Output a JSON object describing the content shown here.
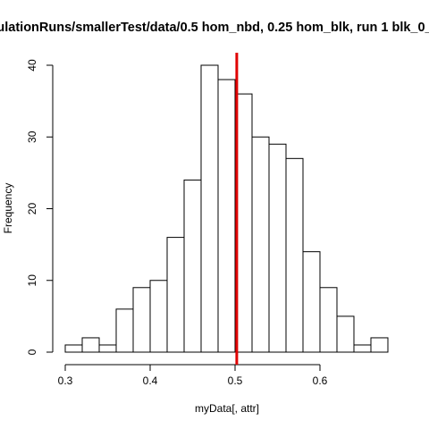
{
  "chart_data": {
    "type": "bar",
    "title": "ulationRuns/smallerTest/data/0.5 hom_nbd, 0.25 hom_blk, run 1 blk_0_",
    "xlabel": "myData[, attr]",
    "ylabel": "Frequency",
    "xlim": [
      0.3,
      0.68
    ],
    "ylim": [
      0,
      40
    ],
    "bin_width": 0.02,
    "bin_starts": [
      0.3,
      0.32,
      0.34,
      0.36,
      0.38,
      0.4,
      0.42,
      0.44,
      0.46,
      0.48,
      0.5,
      0.52,
      0.54,
      0.56,
      0.58,
      0.6,
      0.62,
      0.64,
      0.66
    ],
    "values": [
      1,
      2,
      1,
      6,
      9,
      10,
      16,
      24,
      40,
      38,
      36,
      30,
      29,
      27,
      14,
      9,
      5,
      1,
      2
    ],
    "x_ticks": [
      0.3,
      0.4,
      0.5,
      0.6
    ],
    "x_tick_labels": [
      "0.3",
      "0.4",
      "0.5",
      "0.6"
    ],
    "y_ticks": [
      0,
      10,
      20,
      30,
      40
    ],
    "y_tick_labels": [
      "0",
      "10",
      "20",
      "30",
      "40"
    ],
    "vline": {
      "x": 0.502,
      "color": "#e00000"
    },
    "bar_fill": "#ffffff",
    "bar_stroke": "#000000",
    "grid": false,
    "legend": "none"
  }
}
